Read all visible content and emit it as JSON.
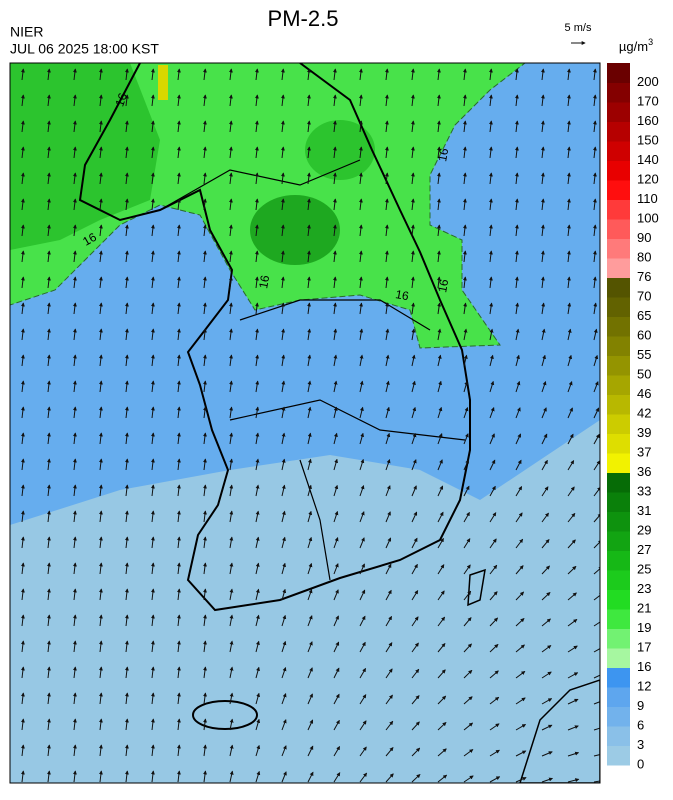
{
  "header": {
    "title": "PM-2.5",
    "agency": "NIER",
    "datetime": "JUL 06 2025 18:00 KST",
    "wind_scale": "5 m/s"
  },
  "colorbar": {
    "unit": "µg/m",
    "unit_superscript": "3",
    "levels": [
      0,
      3,
      6,
      9,
      12,
      16,
      17,
      19,
      21,
      23,
      25,
      27,
      29,
      31,
      33,
      36,
      37,
      39,
      42,
      46,
      50,
      55,
      60,
      65,
      70,
      76,
      80,
      90,
      100,
      110,
      120,
      140,
      150,
      160,
      170,
      200
    ],
    "colors": [
      "#9ccbe5",
      "#8ac0e8",
      "#72b2ec",
      "#5ea6ee",
      "#3d95f0",
      "#a6f7a0",
      "#72f272",
      "#3fe83f",
      "#22dc22",
      "#1ccb1c",
      "#16b816",
      "#12a412",
      "#0e920e",
      "#0a800a",
      "#066c06",
      "#f2f200",
      "#dede00",
      "#cccc00",
      "#b8b800",
      "#a6a600",
      "#949400",
      "#828200",
      "#727200",
      "#626200",
      "#545400",
      "#ff9c9c",
      "#ff7a7a",
      "#ff5a5a",
      "#ff3a3a",
      "#ff0e0e",
      "#e80000",
      "#cf0000",
      "#b60000",
      "#9c0000",
      "#840000",
      "#6a0000"
    ]
  },
  "map": {
    "contour_labels": [
      "16",
      "16",
      "16",
      "16",
      "16",
      "16"
    ]
  }
}
